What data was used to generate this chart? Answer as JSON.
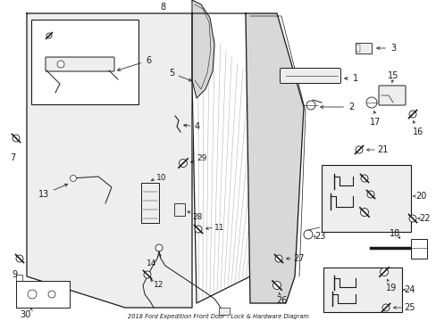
{
  "title": "2018 Ford Expedition Front Door - Lock & Hardware Diagram",
  "bg_color": "#ffffff",
  "line_color": "#1a1a1a",
  "gray_fill": "#d8d8d8",
  "light_gray": "#eeeeee"
}
